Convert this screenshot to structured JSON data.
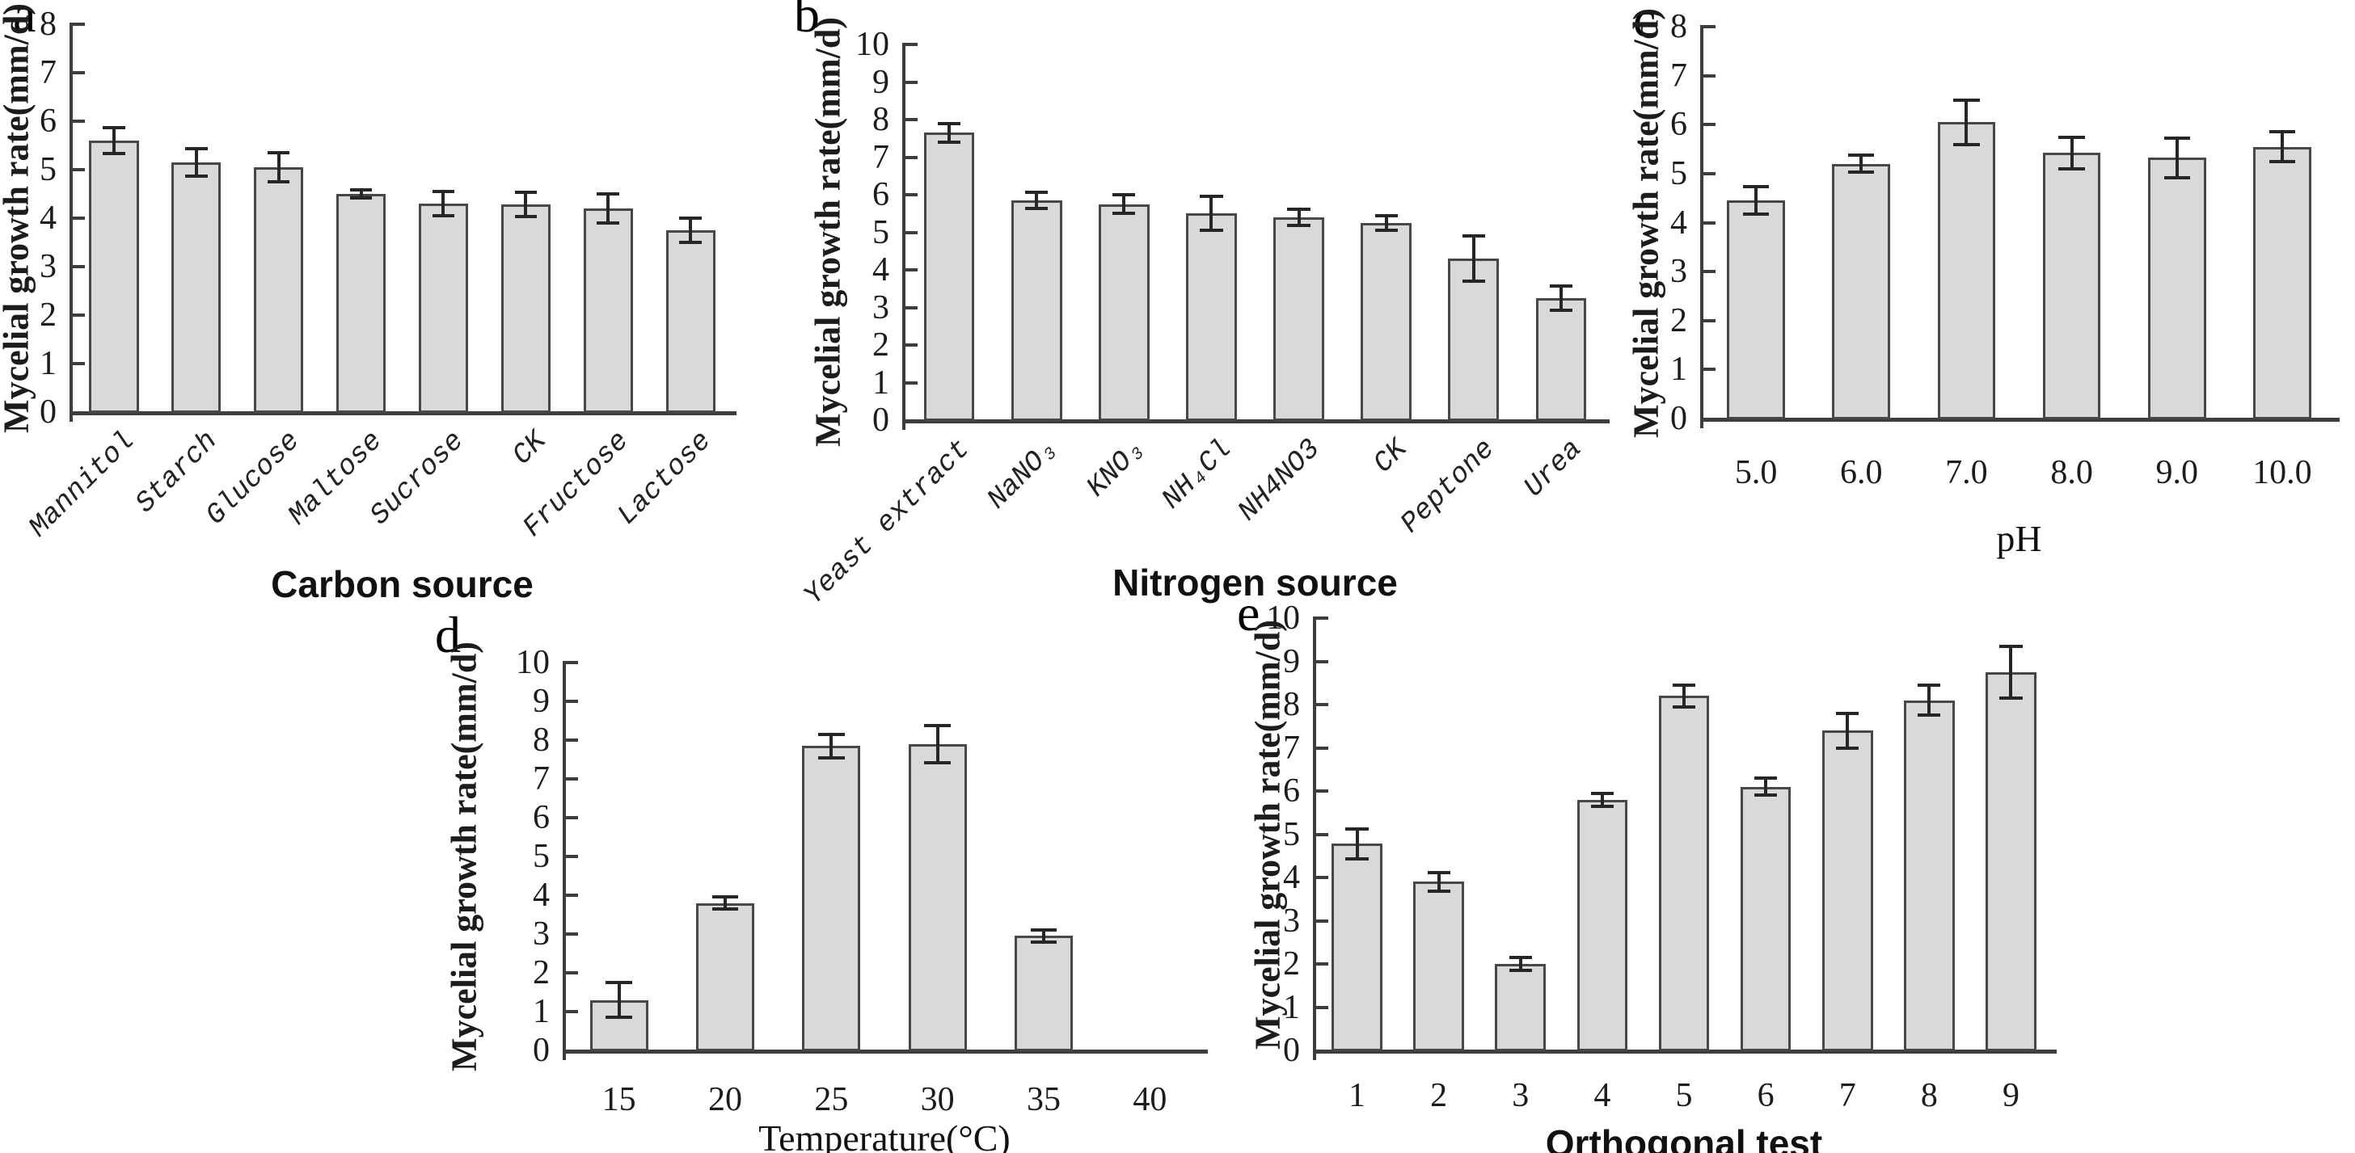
{
  "figure": {
    "background": "#ffffff",
    "bar_fill": "#d9d9d9",
    "bar_stroke": "#474747",
    "axis_color": "#3d3d3d",
    "error_color": "#262626"
  },
  "chart_data": [
    {
      "id": "a",
      "panel_label": "a",
      "type": "bar",
      "title": "",
      "ylabel": "Mycelial growth rate(mm/d)",
      "xlabel": "Carbon source",
      "ylim": [
        0,
        8
      ],
      "ytick_step": 1,
      "grid": false,
      "x_tick_rotation": 45,
      "categories": [
        "Mannitol",
        "Starch",
        "Glucose",
        "Maltose",
        "Sucrose",
        "CK",
        "Fructose",
        "Lactose"
      ],
      "values": [
        5.6,
        5.15,
        5.05,
        4.5,
        4.3,
        4.28,
        4.2,
        3.75
      ],
      "errors": [
        0.27,
        0.28,
        0.3,
        0.08,
        0.25,
        0.25,
        0.3,
        0.25
      ]
    },
    {
      "id": "b",
      "panel_label": "b",
      "type": "bar",
      "title": "",
      "ylabel": "Mycelial growth rate(mm/d)",
      "xlabel": "Nitrogen source",
      "ylim": [
        0,
        10
      ],
      "ytick_step": 1,
      "grid": false,
      "x_tick_rotation": 45,
      "categories": [
        "Yeast extract",
        "NaNO₃",
        "KNO₃",
        "NH₄Cl",
        "NH4NO3",
        "CK",
        "Peptone",
        "Urea"
      ],
      "values": [
        7.65,
        5.85,
        5.75,
        5.5,
        5.4,
        5.25,
        4.3,
        3.25
      ],
      "errors": [
        0.25,
        0.22,
        0.25,
        0.45,
        0.22,
        0.2,
        0.6,
        0.33
      ]
    },
    {
      "id": "c",
      "panel_label": "c",
      "type": "bar",
      "title": "",
      "ylabel": "Mycelial growth rate(mm/d)",
      "xlabel": "pH",
      "ylim": [
        0,
        8
      ],
      "ytick_step": 1,
      "grid": false,
      "x_tick_rotation": 0,
      "categories": [
        "5.0",
        "6.0",
        "7.0",
        "8.0",
        "9.0",
        "10.0"
      ],
      "values": [
        4.45,
        5.2,
        6.05,
        5.42,
        5.32,
        5.55
      ],
      "errors": [
        0.28,
        0.17,
        0.45,
        0.32,
        0.4,
        0.3
      ]
    },
    {
      "id": "d",
      "panel_label": "d",
      "type": "bar",
      "title": "",
      "ylabel": "Mycelial growth rate(mm/d)",
      "xlabel": "Temperature(°C)",
      "ylim": [
        0,
        10
      ],
      "ytick_step": 1,
      "grid": false,
      "x_tick_rotation": 0,
      "categories": [
        "15",
        "20",
        "25",
        "30",
        "35",
        "40"
      ],
      "values": [
        1.3,
        3.8,
        7.85,
        7.9,
        2.95,
        null
      ],
      "errors": [
        0.45,
        0.15,
        0.3,
        0.48,
        0.15,
        null
      ]
    },
    {
      "id": "e",
      "panel_label": "e",
      "type": "bar",
      "title": "",
      "ylabel": "Mycelial growth rate(mm/d)",
      "xlabel": "Orthogonal test",
      "ylim": [
        0,
        10
      ],
      "ytick_step": 1,
      "grid": false,
      "x_tick_rotation": 0,
      "categories": [
        "1",
        "2",
        "3",
        "4",
        "5",
        "6",
        "7",
        "8",
        "9"
      ],
      "values": [
        4.78,
        3.9,
        2.0,
        5.8,
        8.2,
        6.1,
        7.4,
        8.1,
        8.75
      ],
      "errors": [
        0.35,
        0.22,
        0.15,
        0.15,
        0.25,
        0.2,
        0.4,
        0.35,
        0.6
      ]
    }
  ]
}
